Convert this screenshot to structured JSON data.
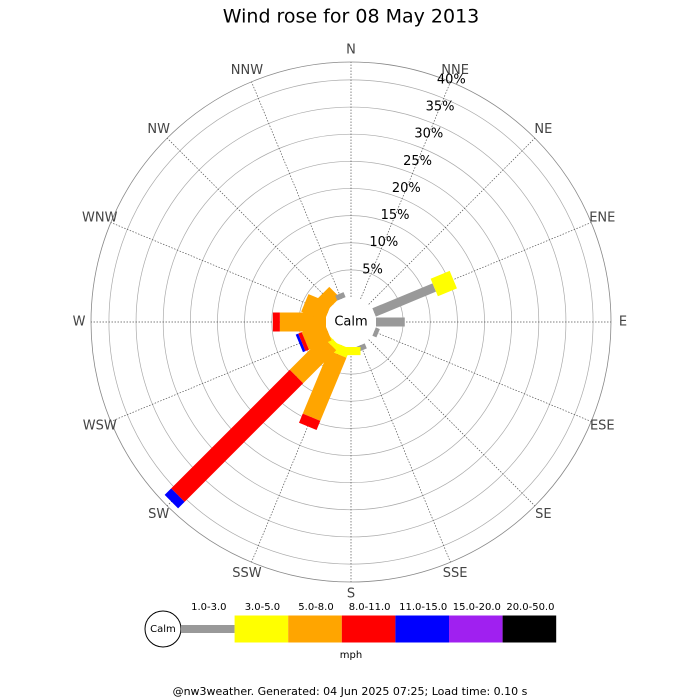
{
  "chart_data": {
    "type": "windrose",
    "title": "Wind rose for 08 May 2013",
    "directions": [
      "N",
      "NNE",
      "NE",
      "ENE",
      "E",
      "ESE",
      "SE",
      "SSE",
      "S",
      "SSW",
      "SW",
      "WSW",
      "W",
      "WNW",
      "NW",
      "NNW"
    ],
    "calm_label": "Calm",
    "legend_title": "mph",
    "footer": "@nw3weather. Generated: 04 Jun 2025 07:25; Load time: 0.10 s",
    "ylim": [
      0,
      43.3
    ],
    "yticks": [
      {
        "value": 5,
        "label": "5%"
      },
      {
        "value": 10,
        "label": "10%"
      },
      {
        "value": 15,
        "label": "15%"
      },
      {
        "value": 20,
        "label": "20%"
      },
      {
        "value": 25,
        "label": "25%"
      },
      {
        "value": 30,
        "label": "30%"
      },
      {
        "value": 35,
        "label": "35%"
      },
      {
        "value": 40,
        "label": "40%"
      }
    ],
    "series": [
      {
        "name": "1.0-3.0",
        "color": "#999999",
        "values": [
          0,
          0,
          0,
          12,
          5.3,
          0.8,
          0,
          1,
          0,
          0,
          0,
          0,
          0,
          0,
          0,
          1
        ]
      },
      {
        "name": "3.0-5.0",
        "color": "#ffff00",
        "values": [
          0,
          0,
          0,
          3.8,
          0,
          0,
          0,
          0,
          1.5,
          1.8,
          1,
          0,
          0,
          0,
          0,
          0
        ]
      },
      {
        "name": "5.0-8.0",
        "color": "#ffa500",
        "values": [
          0,
          0,
          0,
          0,
          0,
          0,
          0,
          0,
          0,
          12.6,
          8.6,
          4.5,
          8.5,
          4.6,
          2.8,
          0
        ]
      },
      {
        "name": "8.0-11.0",
        "color": "#ff0000",
        "values": [
          0,
          0,
          0,
          0,
          0,
          0,
          0,
          0,
          0,
          1.8,
          30.9,
          0.7,
          1.3,
          0,
          0,
          0
        ]
      },
      {
        "name": "11.0-15.0",
        "color": "#0000ff",
        "values": [
          0,
          0,
          0,
          0,
          0,
          0,
          0,
          0,
          0,
          0,
          1.7,
          0.5,
          0,
          0,
          0,
          0
        ]
      },
      {
        "name": "15.0-20.0",
        "color": "#a020f0",
        "values": [
          0,
          0,
          0,
          0,
          0,
          0,
          0,
          0,
          0,
          0,
          0,
          0,
          0,
          0,
          0,
          0
        ]
      },
      {
        "name": "20.0-50.0",
        "color": "#000000",
        "values": [
          0,
          0,
          0,
          0,
          0,
          0,
          0,
          0,
          0,
          0,
          0,
          0,
          0,
          0,
          0,
          0
        ]
      }
    ]
  }
}
